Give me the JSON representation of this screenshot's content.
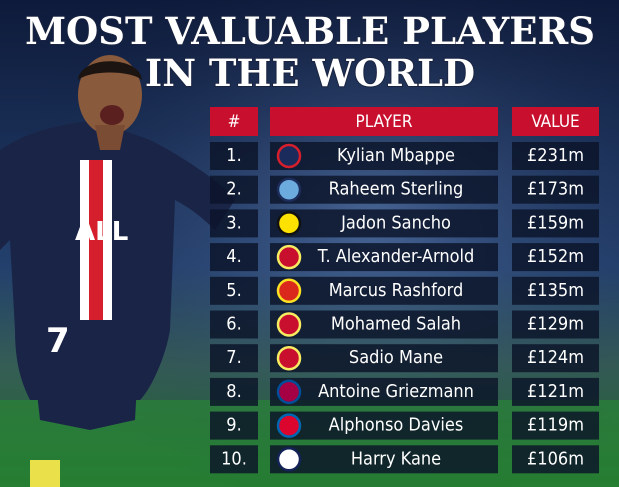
{
  "title": {
    "line1": "MOST VALUABLE PLAYERS",
    "line2": "IN THE WORLD"
  },
  "table": {
    "headers": [
      "#",
      "PLAYER",
      "VALUE"
    ],
    "rows": [
      [
        "1.",
        "Kylian Mbappe",
        "£231m"
      ],
      [
        "2.",
        "Raheem Sterling",
        "£173m"
      ],
      [
        "3.",
        "Jadon Sancho",
        "£159m"
      ],
      [
        "4.",
        "T. Alexander-Arnold",
        "£152m"
      ],
      [
        "5.",
        "Marcus Rashford",
        "£135m"
      ],
      [
        "6.",
        "Mohamed Salah",
        "£129m"
      ],
      [
        "7.",
        "Sadio Mane",
        "£124m"
      ],
      [
        "8.",
        "Antoine Griezmann",
        "£121m"
      ],
      [
        "9.",
        "Alphonso Davies",
        "£119m"
      ],
      [
        "10.",
        "Harry Kane",
        "£106m"
      ]
    ]
  }
}
